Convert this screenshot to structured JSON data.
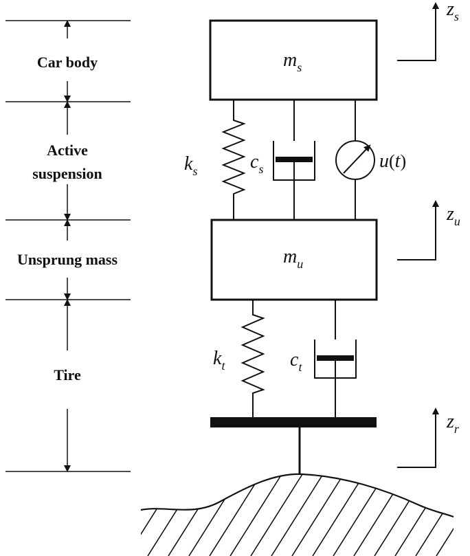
{
  "sections": {
    "car_body": "Car body",
    "active_suspension_line1": "Active",
    "active_suspension_line2": "suspension",
    "unsprung_mass": "Unsprung mass",
    "tire": "Tire"
  },
  "masses": {
    "sprung": {
      "symbol": "m",
      "sub": "s"
    },
    "unsprung": {
      "symbol": "m",
      "sub": "u"
    }
  },
  "elements": {
    "suspension_spring": {
      "symbol": "k",
      "sub": "s"
    },
    "suspension_damper": {
      "symbol": "c",
      "sub": "s"
    },
    "actuator": {
      "symbol": "u",
      "arg": "t"
    },
    "tire_spring": {
      "symbol": "k",
      "sub": "t"
    },
    "tire_damper": {
      "symbol": "c",
      "sub": "t"
    }
  },
  "displacements": {
    "body": {
      "symbol": "z",
      "sub": "s"
    },
    "wheel": {
      "symbol": "z",
      "sub": "u"
    },
    "road": {
      "symbol": "z",
      "sub": "r"
    }
  }
}
